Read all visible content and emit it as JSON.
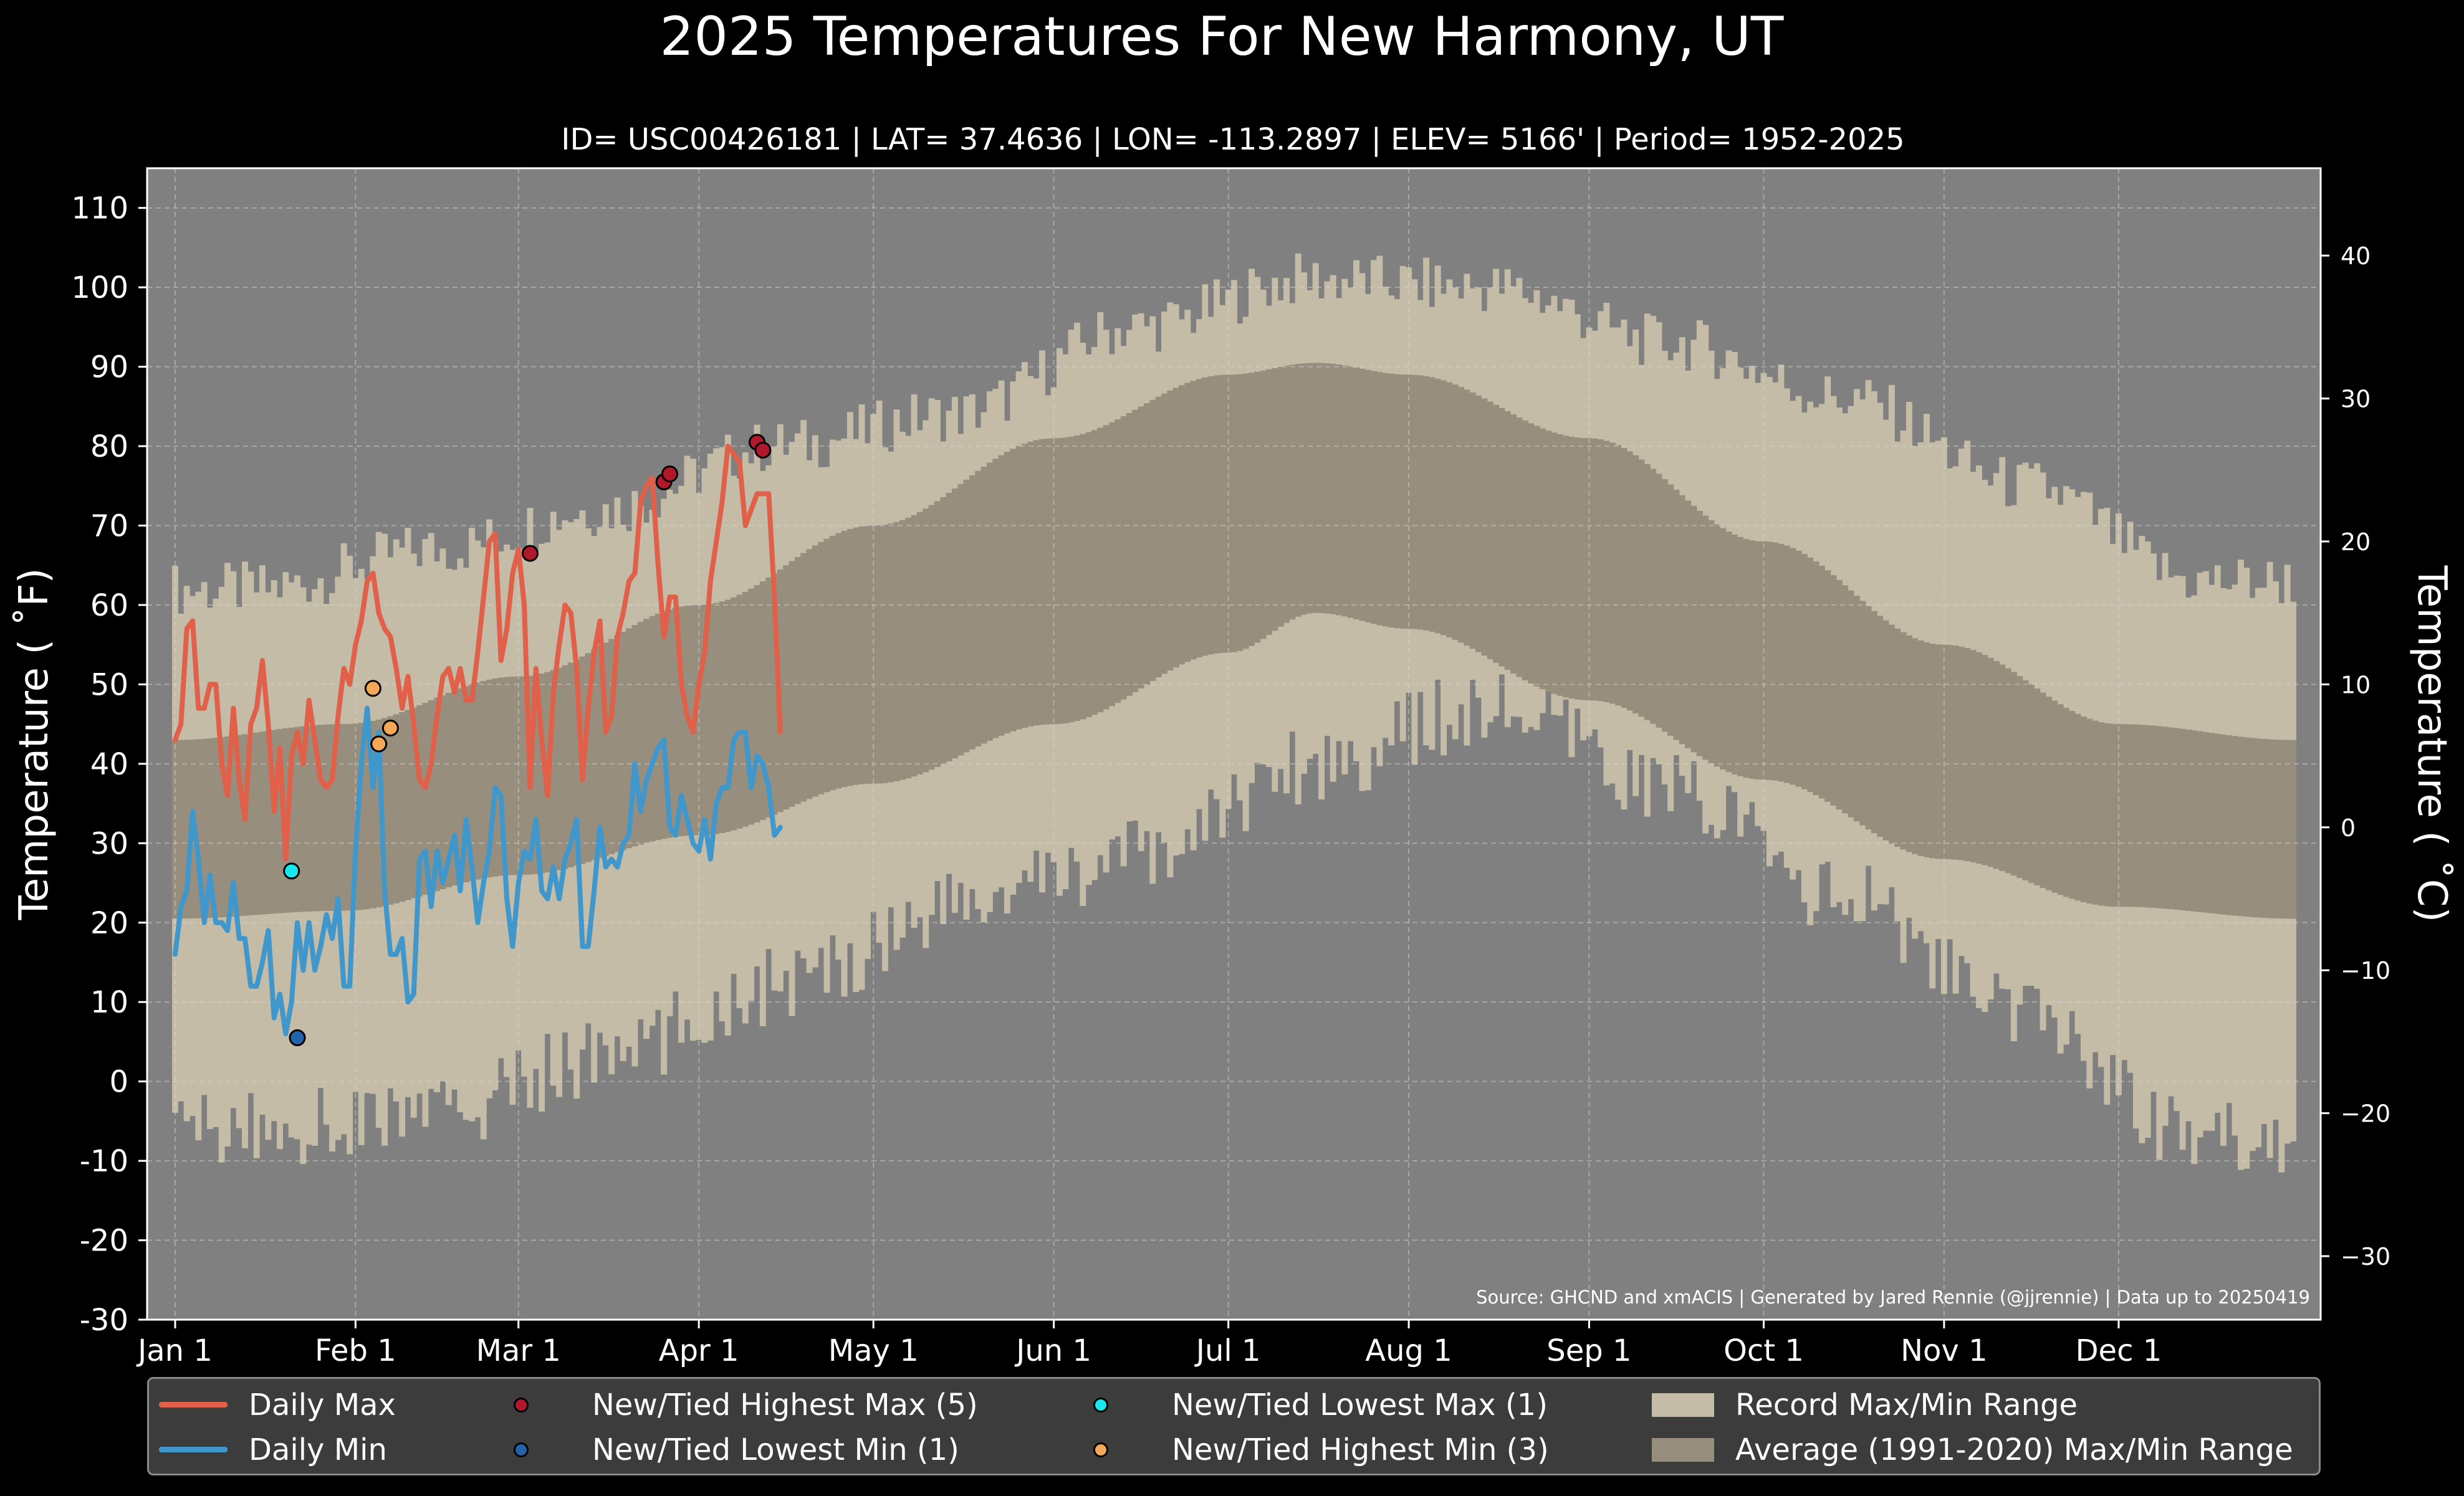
{
  "chart_data": {
    "type": "line",
    "title": "2025 Temperatures For New Harmony, UT",
    "subtitle": "ID= USC00426181 | LAT= 37.4636 | LON= -113.2897 | ELEV= 5166' | Period= 1952-2025",
    "ylabel_left": "Temperature ($^\\circ$F)",
    "ylabel_right": "Temperature ($^\\circ$C)",
    "ylabel_left_text": "Temperature ( ˚F)",
    "ylabel_right_text": "Temperature ( ˚C)",
    "ylim_f": [
      -30,
      115
    ],
    "yticks_f": [
      "110",
      "100",
      "90",
      "80",
      "70",
      "60",
      "50",
      "40",
      "30",
      "20",
      "10",
      "0",
      "-10",
      "-20",
      "-30"
    ],
    "yticks_c": [
      "40",
      "30",
      "20",
      "10",
      "0",
      "−10",
      "−20",
      "−30"
    ],
    "xlim_days": [
      1,
      365
    ],
    "xticks": [
      {
        "label": "Jan 1",
        "day": 1
      },
      {
        "label": "Feb 1",
        "day": 32
      },
      {
        "label": "Mar 1",
        "day": 60
      },
      {
        "label": "Apr 1",
        "day": 91
      },
      {
        "label": "May 1",
        "day": 121
      },
      {
        "label": "Jun 1",
        "day": 152
      },
      {
        "label": "Jul 1",
        "day": 182
      },
      {
        "label": "Aug 1",
        "day": 213
      },
      {
        "label": "Sep 1",
        "day": 244
      },
      {
        "label": "Oct 1",
        "day": 274
      },
      {
        "label": "Nov 1",
        "day": 305
      },
      {
        "label": "Dec 1",
        "day": 335
      }
    ],
    "grid": true,
    "source_note": "Source: GHCND and xmACIS | Generated by Jared Rennie (@jjrennie) | Data up to 20250419",
    "colors": {
      "background": "#000000",
      "plot_bg": "#808080",
      "record_range": "#c4bca6",
      "normal_range": "#978e7e",
      "daily_max": "#e0604a",
      "daily_min": "#3f97cc",
      "new_high_max": "#b0182b",
      "new_low_min": "#2264ac",
      "new_low_max": "#18e8ec",
      "new_high_min": "#f5a857"
    },
    "normal_range": {
      "day": [
        1,
        30,
        60,
        91,
        121,
        152,
        182,
        197,
        213,
        244,
        274,
        305,
        335,
        365
      ],
      "max": [
        43,
        45,
        51,
        60,
        70,
        81,
        89,
        90.5,
        89,
        81,
        68,
        55,
        45,
        43
      ],
      "min": [
        20.5,
        21.5,
        26,
        31,
        37.5,
        45,
        54,
        59,
        57,
        48,
        38,
        28,
        22,
        20.5
      ]
    },
    "record_range": {
      "month_start": [
        1,
        32,
        60,
        91,
        121,
        152,
        182,
        213,
        244,
        274,
        305,
        335
      ],
      "max_envelope": [
        62,
        67,
        72,
        80,
        84,
        95,
        101,
        100,
        93,
        86,
        75,
        63
      ],
      "min_envelope": [
        -6,
        -4,
        3,
        12,
        22,
        28,
        40,
        47,
        37,
        23,
        8,
        -7
      ]
    },
    "series": [
      {
        "name": "Daily Max",
        "day": [
          1,
          2,
          3,
          4,
          5,
          6,
          7,
          8,
          9,
          10,
          11,
          12,
          13,
          14,
          15,
          16,
          17,
          18,
          19,
          20,
          21,
          22,
          23,
          24,
          25,
          26,
          27,
          28,
          29,
          30,
          31,
          32,
          33,
          34,
          35,
          36,
          37,
          38,
          39,
          40,
          41,
          42,
          43,
          44,
          45,
          46,
          47,
          48,
          49,
          50,
          51,
          52,
          53,
          54,
          55,
          56,
          57,
          58,
          59,
          60,
          61,
          62,
          63,
          64,
          65,
          66,
          67,
          68,
          69,
          70,
          71,
          72,
          73,
          74,
          75,
          76,
          77,
          78,
          79,
          80,
          81,
          82,
          83,
          84,
          85,
          86,
          87,
          88,
          89,
          90,
          91,
          92,
          93,
          94,
          95,
          96,
          97,
          98,
          99,
          100,
          101,
          102,
          103,
          104,
          105,
          106,
          107,
          108,
          109
        ],
        "values": [
          43,
          45,
          57,
          58,
          47,
          47,
          50,
          50,
          40,
          36,
          47,
          38,
          33,
          45,
          47,
          53,
          45,
          34,
          42,
          28,
          41,
          44,
          40,
          48,
          43,
          38,
          37,
          38,
          46,
          52,
          50,
          55,
          58,
          63,
          64,
          59,
          57,
          56,
          52,
          47,
          51,
          45,
          38,
          37,
          40,
          46,
          51,
          52,
          49,
          52,
          48,
          48,
          54,
          61,
          68,
          69,
          53,
          57,
          64,
          67,
          60,
          37,
          52,
          43,
          36,
          49,
          55,
          60,
          59,
          52,
          38,
          47,
          54,
          58,
          44,
          46,
          56,
          59,
          63,
          64,
          73,
          75,
          76,
          65,
          56,
          61,
          61,
          50,
          46,
          44,
          50,
          54,
          63,
          68,
          73,
          80,
          79,
          78,
          70,
          72,
          74,
          74,
          74,
          61,
          44
        ]
      },
      {
        "name": "Daily Min",
        "day": [
          1,
          2,
          3,
          4,
          5,
          6,
          7,
          8,
          9,
          10,
          11,
          12,
          13,
          14,
          15,
          16,
          17,
          18,
          19,
          20,
          21,
          22,
          23,
          24,
          25,
          26,
          27,
          28,
          29,
          30,
          31,
          32,
          33,
          34,
          35,
          36,
          37,
          38,
          39,
          40,
          41,
          42,
          43,
          44,
          45,
          46,
          47,
          48,
          49,
          50,
          51,
          52,
          53,
          54,
          55,
          56,
          57,
          58,
          59,
          60,
          61,
          62,
          63,
          64,
          65,
          66,
          67,
          68,
          69,
          70,
          71,
          72,
          73,
          74,
          75,
          76,
          77,
          78,
          79,
          80,
          81,
          82,
          83,
          84,
          85,
          86,
          87,
          88,
          89,
          90,
          91,
          92,
          93,
          94,
          95,
          96,
          97,
          98,
          99,
          100,
          101,
          102,
          103,
          104,
          105,
          106,
          107,
          108,
          109
        ],
        "values": [
          16,
          22,
          24,
          34,
          28,
          20,
          26,
          20,
          20,
          19,
          25,
          18,
          18,
          12,
          12,
          15,
          19,
          8,
          11,
          6,
          10,
          20,
          14,
          20,
          14,
          17,
          21,
          18,
          23,
          12,
          12,
          29,
          40,
          47,
          37,
          44,
          24,
          16,
          16,
          18,
          10,
          11,
          28,
          29,
          22,
          29,
          25,
          28,
          31,
          24,
          33,
          27,
          20,
          25,
          29,
          37,
          36,
          23,
          17,
          25,
          29,
          28,
          33,
          24,
          23,
          27,
          23,
          28,
          30,
          33,
          17,
          17,
          24,
          32,
          27,
          28,
          27,
          30,
          31,
          40,
          34,
          38,
          40,
          42,
          43,
          32,
          31,
          36,
          33,
          30,
          29,
          33,
          28,
          35,
          37,
          37,
          43,
          44,
          44,
          37,
          41,
          40,
          37,
          31,
          32
        ]
      }
    ],
    "records": [
      {
        "name": "New/Tied Highest Max (5)",
        "color_key": "new_high_max",
        "points": [
          {
            "day": 62,
            "value": 66.5
          },
          {
            "day": 85,
            "value": 75.5
          },
          {
            "day": 86,
            "value": 76.5
          },
          {
            "day": 101,
            "value": 80.5
          },
          {
            "day": 102,
            "value": 79.5
          }
        ]
      },
      {
        "name": "New/Tied Lowest Min (1)",
        "color_key": "new_low_min",
        "points": [
          {
            "day": 22,
            "value": 5.5
          }
        ]
      },
      {
        "name": "New/Tied Lowest Max (1)",
        "color_key": "new_low_max",
        "points": [
          {
            "day": 21,
            "value": 26.5
          }
        ]
      },
      {
        "name": "New/Tied Highest Min (3)",
        "color_key": "new_high_min",
        "points": [
          {
            "day": 35,
            "value": 49.5
          },
          {
            "day": 36,
            "value": 42.5
          },
          {
            "day": 38,
            "value": 44.5
          }
        ]
      }
    ],
    "legend": {
      "placement": "bottom",
      "items": [
        {
          "label": "Daily Max",
          "kind": "line",
          "color_key": "daily_max"
        },
        {
          "label": "Daily Min",
          "kind": "line",
          "color_key": "daily_min"
        },
        {
          "label": "New/Tied Highest Max (5)",
          "kind": "dot",
          "color_key": "new_high_max"
        },
        {
          "label": "New/Tied Lowest Min (1)",
          "kind": "dot",
          "color_key": "new_low_min"
        },
        {
          "label": "New/Tied Lowest Max (1)",
          "kind": "dot",
          "color_key": "new_low_max"
        },
        {
          "label": "New/Tied Highest Min (3)",
          "kind": "dot",
          "color_key": "new_high_min"
        },
        {
          "label": "Record Max/Min Range",
          "kind": "patch",
          "color_key": "record_range"
        },
        {
          "label": "Average (1991-2020) Max/Min Range",
          "kind": "patch",
          "color_key": "normal_range"
        }
      ]
    }
  }
}
